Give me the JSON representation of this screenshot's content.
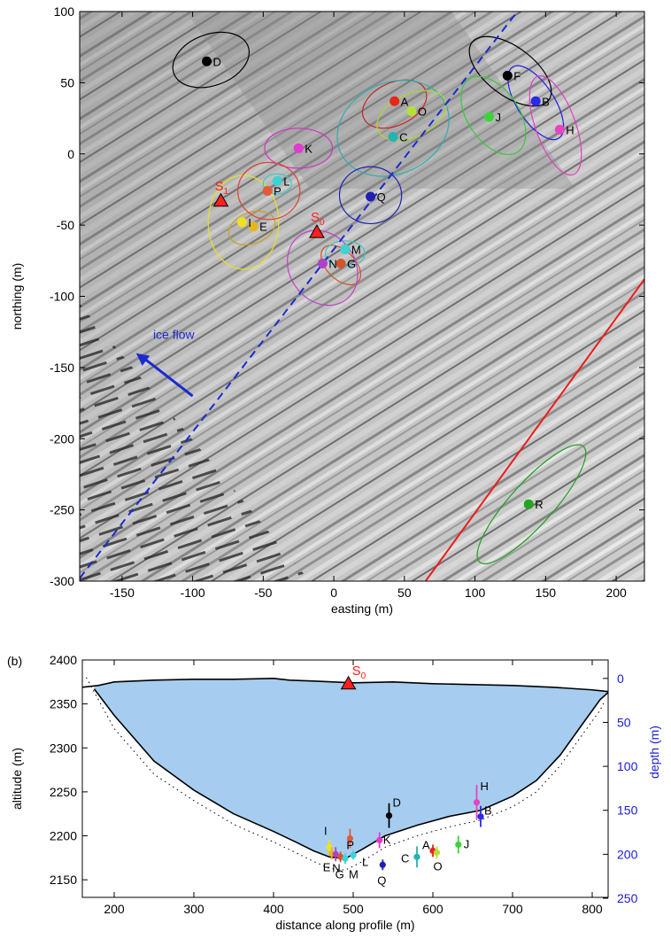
{
  "chart_data": [
    {
      "type": "scatter",
      "panel": "a",
      "xlabel": "easting (m)",
      "ylabel": "northing (m)",
      "xlim": [
        -180,
        220
      ],
      "ylim": [
        -300,
        100
      ],
      "xticks": [
        -150,
        -100,
        -50,
        0,
        50,
        100,
        150,
        200
      ],
      "yticks": [
        -300,
        -250,
        -200,
        -150,
        -100,
        -50,
        0,
        50,
        100
      ],
      "background": "shaded-relief-grayscale",
      "points": [
        {
          "label": "A",
          "x": 43,
          "y": 37,
          "color": "#e8261a"
        },
        {
          "label": "B",
          "x": 143,
          "y": 37,
          "color": "#2a2ae8"
        },
        {
          "label": "C",
          "x": 42,
          "y": 12,
          "color": "#23b3b3"
        },
        {
          "label": "D",
          "x": -90,
          "y": 65,
          "color": "#000000"
        },
        {
          "label": "E",
          "x": -57,
          "y": -51,
          "color": "#e7b51f"
        },
        {
          "label": "F",
          "x": 123,
          "y": 55,
          "color": "#000000"
        },
        {
          "label": "G",
          "x": 5,
          "y": -77,
          "color": "#d2562a"
        },
        {
          "label": "H",
          "x": 160,
          "y": 17,
          "color": "#e445c0"
        },
        {
          "label": "I",
          "x": -65,
          "y": -48,
          "color": "#f0e020"
        },
        {
          "label": "J",
          "x": 110,
          "y": 26,
          "color": "#3ad43a"
        },
        {
          "label": "K",
          "x": -25,
          "y": 4,
          "color": "#e03ad0"
        },
        {
          "label": "L",
          "x": -40,
          "y": -19,
          "color": "#3ad4d4"
        },
        {
          "label": "M",
          "x": 8,
          "y": -67,
          "color": "#3ad4d4"
        },
        {
          "label": "N",
          "x": -8,
          "y": -77,
          "color": "#b040c8"
        },
        {
          "label": "O",
          "x": 55,
          "y": 30,
          "color": "#b5e03a"
        },
        {
          "label": "P",
          "x": -47,
          "y": -26,
          "color": "#e25a3a"
        },
        {
          "label": "Q",
          "x": 26,
          "y": -30,
          "color": "#2020b0"
        },
        {
          "label": "R",
          "x": 138,
          "y": -246,
          "color": "#22a522"
        }
      ],
      "ellipses": [
        {
          "label": "A",
          "cx": 43,
          "cy": 35,
          "rx": 24,
          "ry": 15,
          "angle": -25,
          "color": "#d02020"
        },
        {
          "label": "B",
          "cx": 143,
          "cy": 36,
          "rx": 30,
          "ry": 13,
          "angle": 57,
          "color": "#2020e0"
        },
        {
          "label": "C",
          "cx": 42,
          "cy": 18,
          "rx": 41,
          "ry": 32,
          "angle": -25,
          "color": "#2ab0b0"
        },
        {
          "label": "D",
          "cx": -87,
          "cy": 66,
          "rx": 28,
          "ry": 18,
          "angle": -20,
          "color": "#000000"
        },
        {
          "label": "E",
          "cx": -58,
          "cy": -52,
          "rx": 17,
          "ry": 11,
          "angle": -20,
          "color": "#c8a020"
        },
        {
          "label": "F",
          "cx": 125,
          "cy": 58,
          "rx": 34,
          "ry": 17,
          "angle": 37,
          "color": "#000000"
        },
        {
          "label": "G",
          "cx": 5,
          "cy": -78,
          "rx": 17,
          "ry": 10,
          "angle": 45,
          "color": "#d05020"
        },
        {
          "label": "H",
          "cx": 157,
          "cy": 20,
          "rx": 37,
          "ry": 14,
          "angle": 70,
          "color": "#e040c0"
        },
        {
          "label": "I",
          "cx": -64,
          "cy": -48,
          "rx": 25,
          "ry": 33,
          "angle": 0,
          "color": "#e8e020"
        },
        {
          "label": "J",
          "cx": 113,
          "cy": 27,
          "rx": 31,
          "ry": 18,
          "angle": 56,
          "color": "#3ac83a"
        },
        {
          "label": "K",
          "cx": -25,
          "cy": 4,
          "rx": 24,
          "ry": 14,
          "angle": 0,
          "color": "#d030c8"
        },
        {
          "label": "L",
          "cx": -40,
          "cy": -21,
          "rx": 10,
          "ry": 7,
          "angle": 0,
          "color": "#3ac8c8"
        },
        {
          "label": "M",
          "cx": 8,
          "cy": -70,
          "rx": 14,
          "ry": 9,
          "angle": 0,
          "color": "#3ac8c8"
        },
        {
          "label": "N",
          "cx": -8,
          "cy": -80,
          "rx": 28,
          "ry": 23,
          "angle": 55,
          "color": "#c040c8"
        },
        {
          "label": "O",
          "cx": 55,
          "cy": 27,
          "rx": 26,
          "ry": 15,
          "angle": -25,
          "color": "#b0d82a"
        },
        {
          "label": "P",
          "cx": -46,
          "cy": -26,
          "rx": 22,
          "ry": 20,
          "angle": 0,
          "color": "#e04030"
        },
        {
          "label": "Q",
          "cx": 26,
          "cy": -29,
          "rx": 22,
          "ry": 20,
          "angle": 0,
          "color": "#2020b0"
        },
        {
          "label": "R",
          "cx": 140,
          "cy": -246,
          "rx": 55,
          "ry": 15,
          "angle": -48,
          "color": "#22a022"
        }
      ],
      "stations": [
        {
          "label": "S",
          "sub": "1",
          "x": -80,
          "y": -33,
          "color": "#ff2020"
        },
        {
          "label": "S",
          "sub": "0",
          "x": -12,
          "y": -55,
          "color": "#ff2020"
        }
      ],
      "profile_line": {
        "x": [
          -180,
          130
        ],
        "y": [
          -298,
          100
        ],
        "color": "#1a2ad0",
        "style": "dashed"
      },
      "red_line": {
        "x": [
          65,
          220
        ],
        "y": [
          -300,
          -88
        ],
        "color": "#ee1a1a"
      },
      "ice_flow_arrow": {
        "label": "ice flow",
        "from": [
          -100,
          -170
        ],
        "to": [
          -140,
          -140
        ],
        "color": "#1a2ad0"
      }
    },
    {
      "type": "line",
      "panel": "b",
      "panel_label": "(b)",
      "xlabel": "distance along profile (m)",
      "ylabel": "altitude (m)",
      "ylabel_right": "depth (m)",
      "xlim": [
        160,
        820
      ],
      "ylim": [
        2130,
        2400
      ],
      "xticks": [
        200,
        300,
        400,
        500,
        600,
        700,
        800
      ],
      "yticks": [
        2150,
        2200,
        2250,
        2300,
        2350,
        2400
      ],
      "y_right_ticks": [
        0,
        50,
        100,
        150,
        200,
        250
      ],
      "y_right_color": "#1a1ad8",
      "fill_color": "#a6cdf0",
      "surface": {
        "x": [
          160,
          180,
          200,
          250,
          300,
          350,
          400,
          420,
          450,
          500,
          550,
          600,
          650,
          700,
          750,
          800,
          820
        ],
        "y": [
          2369,
          2371,
          2375,
          2377,
          2378,
          2378,
          2379,
          2377,
          2376,
          2374,
          2375,
          2373,
          2372,
          2371,
          2369,
          2366,
          2364
        ]
      },
      "bed": {
        "x": [
          175,
          200,
          250,
          300,
          350,
          400,
          430,
          450,
          470,
          490,
          510,
          540,
          580,
          620,
          660,
          700,
          730,
          760,
          790,
          810,
          820
        ],
        "y": [
          2367,
          2337,
          2285,
          2252,
          2225,
          2205,
          2192,
          2183,
          2176,
          2174,
          2184,
          2200,
          2212,
          2222,
          2229,
          2245,
          2263,
          2292,
          2330,
          2355,
          2363
        ]
      },
      "bed_lower": {
        "x": [
          165,
          200,
          250,
          300,
          350,
          400,
          430,
          450,
          470,
          490,
          510,
          540,
          580,
          620,
          660,
          700,
          730,
          760,
          790,
          810,
          815
        ],
        "y": [
          2380,
          2322,
          2270,
          2240,
          2213,
          2193,
          2180,
          2171,
          2163,
          2161,
          2170,
          2187,
          2200,
          2210,
          2218,
          2233,
          2250,
          2280,
          2318,
          2343,
          2352
        ]
      },
      "station": {
        "label": "S",
        "sub": "0",
        "x": 494,
        "y": 2373,
        "color": "#ff2020"
      },
      "sources": [
        {
          "label": "D",
          "x": 545,
          "y": 2223,
          "err": 14,
          "color": "#000000"
        },
        {
          "label": "H",
          "x": 655,
          "y": 2238,
          "err": 20,
          "color": "#e445c0"
        },
        {
          "label": "B",
          "x": 660,
          "y": 2222,
          "err": 12,
          "color": "#2a2ae8"
        },
        {
          "label": "I",
          "x": 470,
          "y": 2187,
          "err": 9,
          "color": "#f0e020"
        },
        {
          "label": "E",
          "x": 473,
          "y": 2180,
          "err": 7,
          "color": "#e7b51f"
        },
        {
          "label": "N",
          "x": 478,
          "y": 2179,
          "err": 8,
          "color": "#b040c8"
        },
        {
          "label": "G",
          "x": 484,
          "y": 2176,
          "err": 6,
          "color": "#d2562a"
        },
        {
          "label": "M",
          "x": 490,
          "y": 2174,
          "err": 6,
          "color": "#3ad4d4"
        },
        {
          "label": "P",
          "x": 496,
          "y": 2197,
          "err": 11,
          "color": "#e25a3a"
        },
        {
          "label": "L",
          "x": 500,
          "y": 2178,
          "err": 5,
          "color": "#3ad4d4"
        },
        {
          "label": "K",
          "x": 533,
          "y": 2195,
          "err": 9,
          "color": "#e03ad0"
        },
        {
          "label": "Q",
          "x": 537,
          "y": 2167,
          "err": 6,
          "color": "#2020b0"
        },
        {
          "label": "C",
          "x": 580,
          "y": 2176,
          "err": 12,
          "color": "#23b3b3"
        },
        {
          "label": "A",
          "x": 600,
          "y": 2183,
          "err": 7,
          "color": "#e8261a"
        },
        {
          "label": "O",
          "x": 605,
          "y": 2181,
          "err": 7,
          "color": "#b5e03a"
        },
        {
          "label": "J",
          "x": 632,
          "y": 2190,
          "err": 10,
          "color": "#3ad43a"
        }
      ]
    }
  ]
}
